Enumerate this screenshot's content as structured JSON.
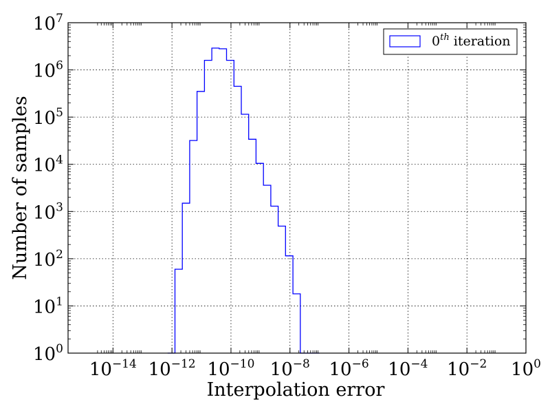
{
  "chart_data": {
    "type": "histogram",
    "title": "",
    "xlabel": "Interpolation error",
    "ylabel": "Number of samples",
    "x_scale": "log",
    "y_scale": "log",
    "xlim": [
      3e-16,
      1
    ],
    "ylim": [
      1,
      10000000
    ],
    "x_ticks": [
      {
        "base": "10",
        "exp": "−14",
        "value": 1e-14
      },
      {
        "base": "10",
        "exp": "−12",
        "value": 1e-12
      },
      {
        "base": "10",
        "exp": "−10",
        "value": 1e-10
      },
      {
        "base": "10",
        "exp": "−8",
        "value": 1e-08
      },
      {
        "base": "10",
        "exp": "−6",
        "value": 1e-06
      },
      {
        "base": "10",
        "exp": "−4",
        "value": 0.0001
      },
      {
        "base": "10",
        "exp": "−2",
        "value": 0.01
      },
      {
        "base": "10",
        "exp": "0",
        "value": 1
      }
    ],
    "y_ticks": [
      {
        "base": "10",
        "exp": "0",
        "value": 1
      },
      {
        "base": "10",
        "exp": "1",
        "value": 10
      },
      {
        "base": "10",
        "exp": "2",
        "value": 100
      },
      {
        "base": "10",
        "exp": "3",
        "value": 1000
      },
      {
        "base": "10",
        "exp": "4",
        "value": 10000
      },
      {
        "base": "10",
        "exp": "5",
        "value": 100000
      },
      {
        "base": "10",
        "exp": "6",
        "value": 1000000
      },
      {
        "base": "10",
        "exp": "7",
        "value": 10000000
      }
    ],
    "grid": true,
    "legend_position": "top-right",
    "series": [
      {
        "name_base": "0",
        "name_sup": "th",
        "name_rest": " iteration",
        "color": "#0000ff",
        "bin_edges": [
          7.1e-13,
          1.26e-12,
          2.24e-12,
          3.98e-12,
          7.08e-12,
          1.26e-11,
          2.24e-11,
          3.98e-11,
          7.08e-11,
          1.26e-10,
          2.24e-10,
          3.98e-10,
          7.08e-10,
          1.26e-09,
          2.24e-09,
          3.98e-09,
          7.08e-09,
          1.26e-08,
          2.24e-08,
          1e-07
        ],
        "counts": [
          1,
          60,
          1500,
          32000,
          350000,
          1600000,
          2900000,
          2800000,
          1600000,
          450000,
          115000,
          34000,
          10500,
          3600,
          1300,
          490,
          115,
          18,
          1
        ]
      }
    ]
  }
}
